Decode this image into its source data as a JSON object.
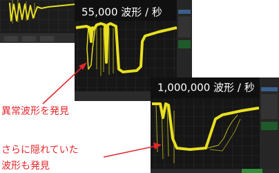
{
  "screens": [
    {
      "label": "55,000 波形 / 秒"
    },
    {
      "label": "1,000,000 波形 / 秒"
    }
  ],
  "annotations": [
    {
      "text": "異常波形を発見"
    },
    {
      "lines": [
        "さらに隠れていた",
        "波形も発見"
      ]
    }
  ]
}
